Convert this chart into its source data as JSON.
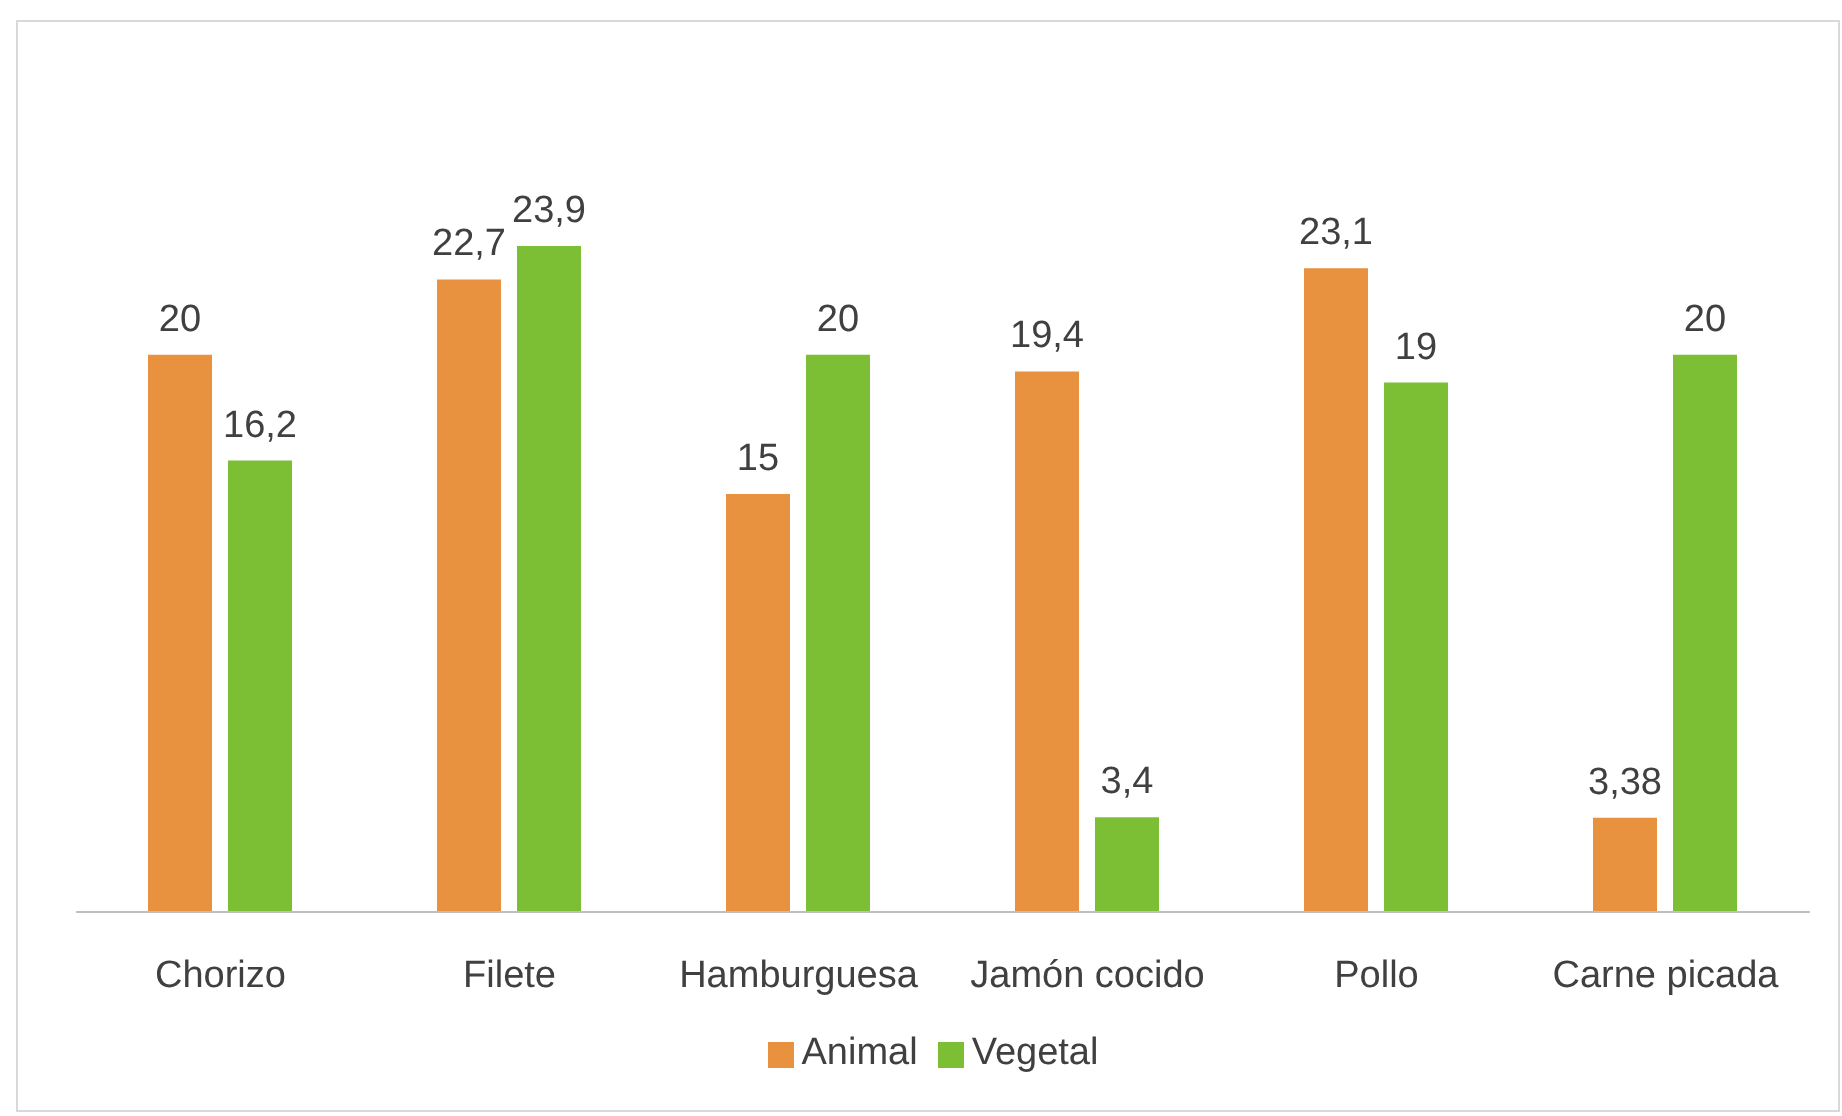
{
  "chart_data": {
    "type": "bar",
    "categories": [
      "Chorizo",
      "Filete",
      "Hamburguesa",
      "Jamón cocido",
      "Pollo",
      "Carne picada"
    ],
    "series": [
      {
        "name": "Animal",
        "color": "#e8913f",
        "values": [
          20,
          22.7,
          15,
          19.4,
          23.1,
          3.38
        ],
        "value_labels": [
          "20",
          "22,7",
          "15",
          "19,4",
          "23,1",
          "3,38"
        ]
      },
      {
        "name": "Vegetal",
        "color": "#7cbf35",
        "values": [
          16.2,
          23.9,
          20,
          3.4,
          19,
          20
        ],
        "value_labels": [
          "16,2",
          "23,9",
          "20",
          "3,4",
          "19",
          "20"
        ]
      }
    ],
    "legend": "bottom",
    "grid": false
  }
}
